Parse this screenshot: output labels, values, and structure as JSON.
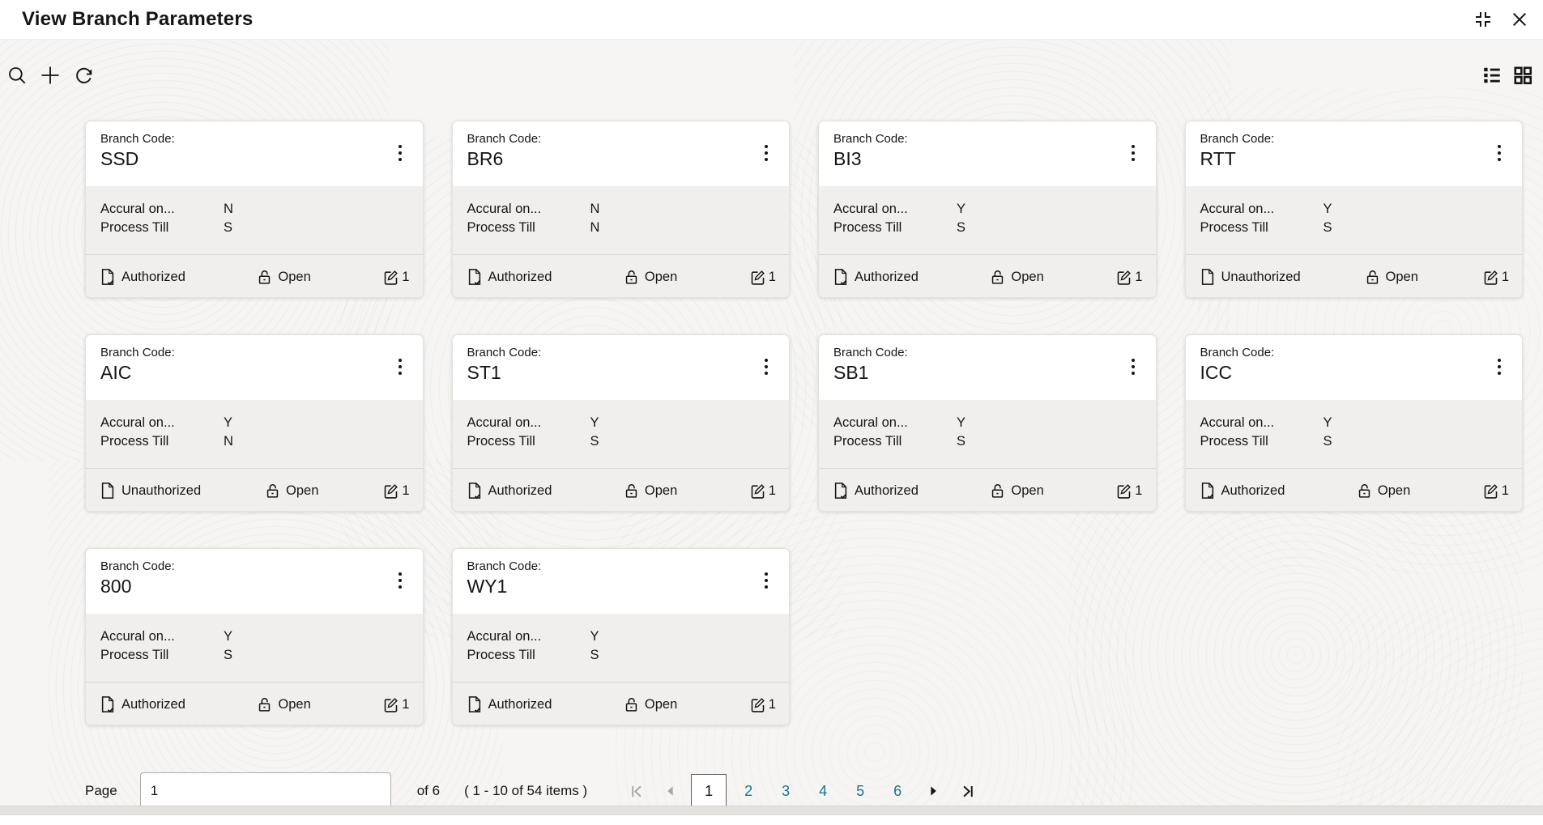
{
  "window": {
    "title": "View Branch Parameters"
  },
  "toolbar": {
    "icons_left": [
      "search",
      "add",
      "refresh"
    ],
    "icons_right": [
      "list-view",
      "grid-view"
    ]
  },
  "card_labels": {
    "branch_code": "Branch Code:",
    "accrual": "Accural on...",
    "process_till": "Process Till"
  },
  "cards": [
    {
      "code": "SSD",
      "accrual": "N",
      "process_till": "S",
      "auth_status": "Authorized",
      "record_status": "Open",
      "edit_count": "1"
    },
    {
      "code": "BR6",
      "accrual": "N",
      "process_till": "N",
      "auth_status": "Authorized",
      "record_status": "Open",
      "edit_count": "1"
    },
    {
      "code": "BI3",
      "accrual": "Y",
      "process_till": "S",
      "auth_status": "Authorized",
      "record_status": "Open",
      "edit_count": "1"
    },
    {
      "code": "RTT",
      "accrual": "Y",
      "process_till": "S",
      "auth_status": "Unauthorized",
      "record_status": "Open",
      "edit_count": "1"
    },
    {
      "code": "AIC",
      "accrual": "Y",
      "process_till": "N",
      "auth_status": "Unauthorized",
      "record_status": "Open",
      "edit_count": "1"
    },
    {
      "code": "ST1",
      "accrual": "Y",
      "process_till": "S",
      "auth_status": "Authorized",
      "record_status": "Open",
      "edit_count": "1"
    },
    {
      "code": "SB1",
      "accrual": "Y",
      "process_till": "S",
      "auth_status": "Authorized",
      "record_status": "Open",
      "edit_count": "1"
    },
    {
      "code": "ICC",
      "accrual": "Y",
      "process_till": "S",
      "auth_status": "Authorized",
      "record_status": "Open",
      "edit_count": "1"
    },
    {
      "code": "800",
      "accrual": "Y",
      "process_till": "S",
      "auth_status": "Authorized",
      "record_status": "Open",
      "edit_count": "1"
    },
    {
      "code": "WY1",
      "accrual": "Y",
      "process_till": "S",
      "auth_status": "Authorized",
      "record_status": "Open",
      "edit_count": "1"
    }
  ],
  "pagination": {
    "page_label": "Page",
    "page_value": "1",
    "of_label": "of 6",
    "items_label": "( 1 - 10 of 54 items )",
    "pages": [
      "1",
      "2",
      "3",
      "4",
      "5",
      "6"
    ],
    "current_page": "1"
  },
  "colors": {
    "accent_teal": "#1b7489",
    "text": "#161513",
    "card_section_bg": "#f0efed",
    "page_bg": "#f6f5f3"
  }
}
